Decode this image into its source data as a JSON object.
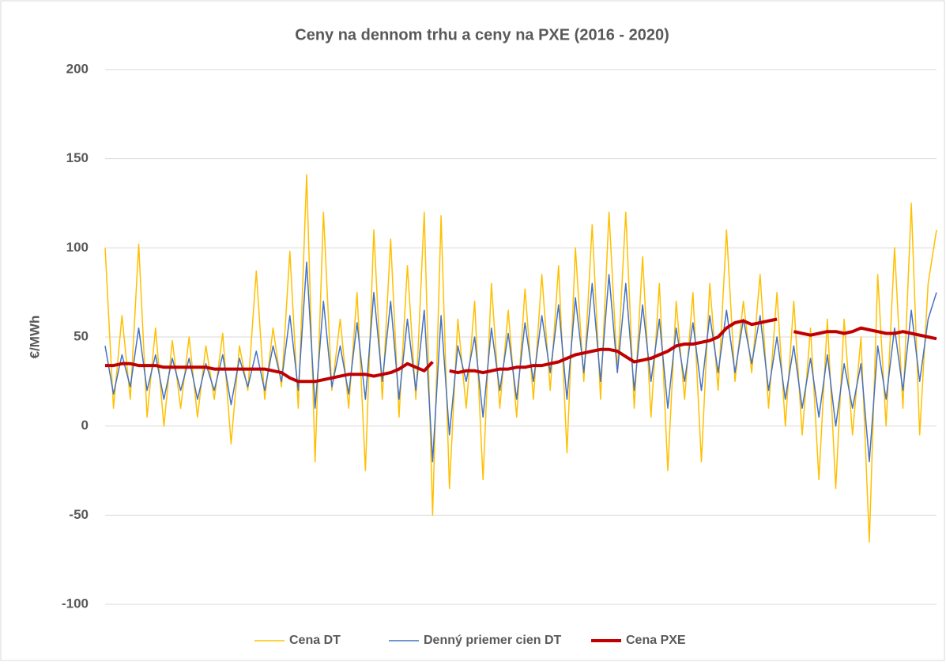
{
  "chart_data": {
    "type": "line",
    "title": "Ceny na dennom trhu a ceny na PXE (2016 - 2020)",
    "y_label": "€/MWh",
    "ylim": [
      -100,
      200
    ],
    "yticks": [
      -100,
      -50,
      0,
      50,
      100,
      150,
      200
    ],
    "grid": true,
    "legend": "bottom",
    "series": [
      {
        "name": "Cena DT",
        "color": "#ffc000",
        "width": 1.5,
        "values": [
          100,
          10,
          62,
          15,
          102,
          5,
          55,
          0,
          48,
          10,
          50,
          5,
          45,
          15,
          52,
          -10,
          45,
          20,
          87,
          15,
          55,
          22,
          98,
          10,
          141,
          -20,
          120,
          20,
          60,
          10,
          75,
          -25,
          110,
          15,
          105,
          5,
          90,
          15,
          120,
          -50,
          118,
          -35,
          60,
          10,
          70,
          -30,
          80,
          10,
          65,
          5,
          77,
          15,
          85,
          20,
          90,
          -15,
          100,
          25,
          113,
          15,
          120,
          30,
          120,
          10,
          95,
          5,
          80,
          -25,
          70,
          15,
          75,
          -20,
          80,
          20,
          110,
          25,
          70,
          30,
          85,
          10,
          75,
          0,
          70,
          -5,
          55,
          -30,
          60,
          -35,
          60,
          -5,
          50,
          -65,
          85,
          0,
          100,
          10,
          125,
          -5,
          80,
          110
        ]
      },
      {
        "name": "Denný priemer cien DT",
        "color": "#4472c4",
        "width": 1.5,
        "values": [
          45,
          18,
          40,
          22,
          55,
          20,
          40,
          15,
          38,
          20,
          38,
          15,
          35,
          20,
          40,
          12,
          38,
          22,
          42,
          20,
          45,
          25,
          62,
          20,
          92,
          10,
          70,
          22,
          45,
          18,
          58,
          15,
          75,
          25,
          70,
          15,
          60,
          20,
          65,
          -20,
          62,
          -5,
          45,
          25,
          50,
          5,
          55,
          20,
          52,
          15,
          58,
          25,
          62,
          30,
          68,
          15,
          72,
          30,
          80,
          25,
          85,
          30,
          80,
          20,
          68,
          25,
          60,
          10,
          55,
          25,
          58,
          20,
          62,
          30,
          65,
          30,
          60,
          35,
          62,
          20,
          50,
          15,
          45,
          10,
          38,
          5,
          40,
          0,
          35,
          10,
          35,
          -20,
          45,
          15,
          55,
          20,
          65,
          25,
          60,
          75
        ]
      },
      {
        "name": "Cena PXE",
        "color": "#c00000",
        "width": 4,
        "values": [
          34,
          34,
          35,
          35,
          34,
          34,
          34,
          33,
          33,
          33,
          33,
          33,
          33,
          32,
          32,
          32,
          32,
          32,
          32,
          32,
          31,
          30,
          27,
          25,
          25,
          25,
          26,
          27,
          28,
          29,
          29,
          29,
          28,
          29,
          30,
          32,
          35,
          33,
          31,
          36,
          null,
          31,
          30,
          31,
          31,
          30,
          31,
          32,
          32,
          33,
          33,
          34,
          34,
          35,
          36,
          38,
          40,
          41,
          42,
          43,
          43,
          42,
          39,
          36,
          37,
          38,
          40,
          42,
          45,
          46,
          46,
          47,
          48,
          50,
          55,
          58,
          59,
          57,
          58,
          59,
          60,
          null,
          53,
          52,
          51,
          52,
          53,
          53,
          52,
          53,
          55,
          54,
          53,
          52,
          52,
          53,
          52,
          51,
          50,
          49
        ]
      }
    ]
  }
}
